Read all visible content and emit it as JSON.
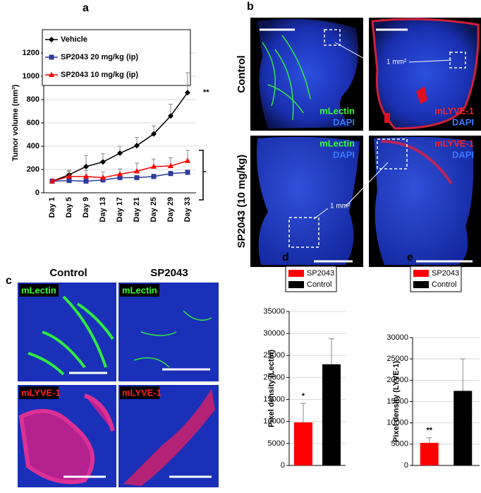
{
  "chart_data": [
    {
      "type": "line",
      "panel": "a",
      "ylabel": "Tumor volume (mm³)",
      "legend": "upper left",
      "grid": true,
      "annotation": "**",
      "categories": [
        "Day 1",
        "Day 5",
        "Day 9",
        "Day 13",
        "Day 17",
        "Day 21",
        "Day 25",
        "Day 29",
        "Day 33"
      ],
      "ylim": [
        0,
        1200
      ],
      "yticks": [
        0,
        200,
        400,
        600,
        800,
        1000,
        1200
      ],
      "series": [
        {
          "name": "Vehicle",
          "color": "#000000",
          "marker": "diamond",
          "values": [
            100,
            155,
            225,
            265,
            340,
            405,
            505,
            660,
            860
          ],
          "errors": [
            5,
            40,
            95,
            70,
            60,
            70,
            70,
            100,
            170
          ]
        },
        {
          "name": "SP2043 20 mg/kg (ip)",
          "color": "#2e3a9c",
          "marker": "square",
          "values": [
            100,
            105,
            100,
            110,
            130,
            130,
            140,
            165,
            175
          ],
          "errors": [
            5,
            15,
            15,
            20,
            20,
            15,
            20,
            20,
            20
          ]
        },
        {
          "name": "SP2043 10 mg/kg (ip)",
          "color": "#ff0000",
          "marker": "triangle",
          "values": [
            100,
            140,
            140,
            130,
            160,
            185,
            225,
            230,
            275
          ],
          "errors": [
            5,
            45,
            50,
            50,
            45,
            70,
            65,
            70,
            90
          ]
        }
      ]
    },
    {
      "type": "bar",
      "panel": "d",
      "ylabel": "Pixel density (Lectin)",
      "legend": "upper left",
      "grid": true,
      "annotation": "*",
      "ylim": [
        0,
        35000
      ],
      "yticks": [
        0,
        5000,
        10000,
        15000,
        20000,
        25000,
        30000,
        35000
      ],
      "series": [
        {
          "name": "SP2043",
          "color": "#ff0000",
          "values": [
            9800
          ],
          "errors": [
            4300
          ]
        },
        {
          "name": "Control",
          "color": "#000000",
          "values": [
            23000
          ],
          "errors": [
            5800
          ]
        }
      ]
    },
    {
      "type": "bar",
      "panel": "e",
      "ylabel": "Pixel density (LYVE-1)",
      "legend": "upper left",
      "grid": true,
      "annotation": "**",
      "ylim": [
        0,
        30000
      ],
      "yticks": [
        0,
        5000,
        10000,
        15000,
        20000,
        25000,
        30000
      ],
      "series": [
        {
          "name": "SP2043",
          "color": "#ff0000",
          "values": [
            5300
          ],
          "errors": [
            1200
          ]
        },
        {
          "name": "Control",
          "color": "#000000",
          "values": [
            17500
          ],
          "errors": [
            7500
          ]
        }
      ]
    }
  ],
  "micrographs": [
    {
      "label": "b",
      "row_labels": [
        "Control",
        "SP2043 (10 mg/kg)"
      ],
      "callout": "1 mm²",
      "tiles": [
        {
          "stain": "mLectin",
          "counter": "DAPI"
        },
        {
          "stain": "mLYVE-1",
          "counter": "DAPI"
        },
        {
          "stain": "mLectin",
          "counter": "DAPI"
        },
        {
          "stain": "mLYVE-1",
          "counter": "DAPI"
        }
      ]
    },
    {
      "label": "c",
      "column_labels": [
        "Control",
        "SP2043"
      ],
      "tiles": [
        "mLectin",
        "mLectin",
        "mLYVE-1",
        "mLYVE-1"
      ]
    }
  ]
}
